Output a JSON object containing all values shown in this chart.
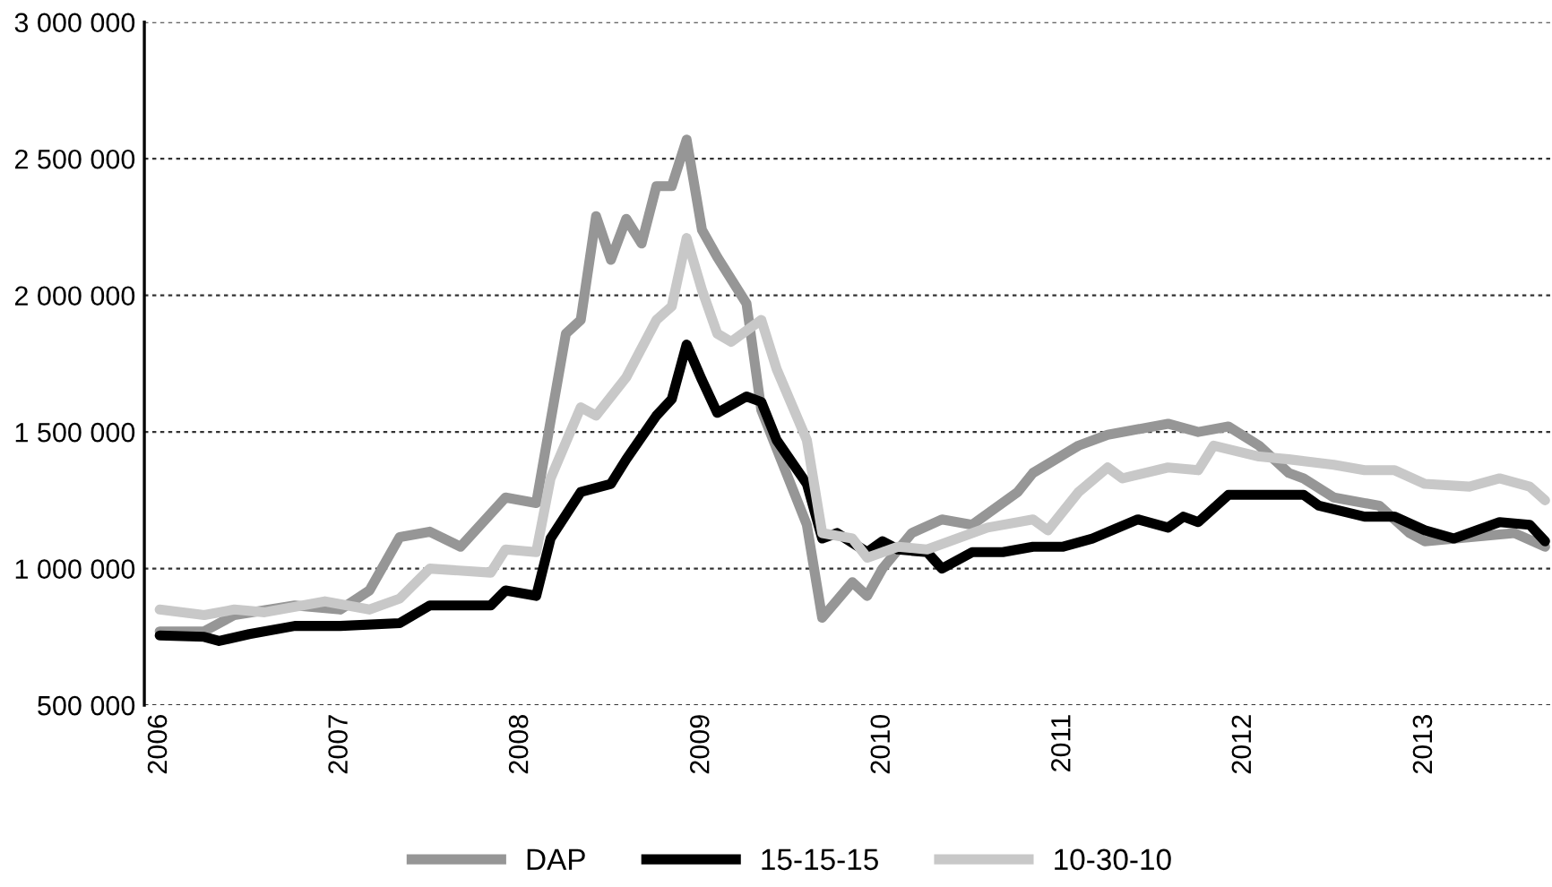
{
  "chart_data": {
    "type": "line",
    "legend": "bottom",
    "grid": "y",
    "line_style": "solid",
    "marker": "none",
    "xlim": [
      "2005-12",
      "2013-09-15"
    ],
    "xticks": [
      {
        "value": "2006-01",
        "label": "2006"
      },
      {
        "value": "2007-01",
        "label": "2007"
      },
      {
        "value": "2008-01",
        "label": "2008"
      },
      {
        "value": "2009-01",
        "label": "2009"
      },
      {
        "value": "2010-01",
        "label": "2010"
      },
      {
        "value": "2011-01",
        "label": "2011"
      },
      {
        "value": "2012-01",
        "label": "2012"
      },
      {
        "value": "2013-01",
        "label": "2013"
      }
    ],
    "ylim": [
      500000,
      3000000
    ],
    "yticks": [
      {
        "value": 500000,
        "label": "500 000"
      },
      {
        "value": 1000000,
        "label": "1 000 000"
      },
      {
        "value": 1500000,
        "label": "1 500 000"
      },
      {
        "value": 2000000,
        "label": "2 000 000"
      },
      {
        "value": 2500000,
        "label": "2 500 000"
      },
      {
        "value": 3000000,
        "label": "3 000 000"
      }
    ],
    "series": [
      {
        "name": "DAP",
        "color": "#969696",
        "x": [
          "2006-01",
          "2006-04",
          "2006-06",
          "2006-10",
          "2007-01",
          "2007-03",
          "2007-05",
          "2007-07",
          "2007-09",
          "2007-12",
          "2008-02",
          "2008-04",
          "2008-05",
          "2008-06",
          "2008-07",
          "2008-08",
          "2008-09",
          "2008-10",
          "2008-11",
          "2008-12",
          "2009-01",
          "2009-02",
          "2009-04",
          "2009-05",
          "2009-08",
          "2009-09",
          "2009-11",
          "2009-12",
          "2010-01",
          "2010-03",
          "2010-05",
          "2010-07",
          "2010-10",
          "2010-11",
          "2011-02",
          "2011-04",
          "2011-08",
          "2011-10",
          "2011-12",
          "2012-02",
          "2012-04",
          "2012-05",
          "2012-07",
          "2012-10",
          "2012-12",
          "2013-01",
          "2013-07",
          "2013-09"
        ],
        "values": [
          770000,
          770000,
          830000,
          865000,
          850000,
          920000,
          1115000,
          1135000,
          1080000,
          1260000,
          1240000,
          1860000,
          1910000,
          2290000,
          2130000,
          2280000,
          2190000,
          2400000,
          2400000,
          2570000,
          2240000,
          2140000,
          1970000,
          1580000,
          1160000,
          820000,
          950000,
          900000,
          1000000,
          1130000,
          1180000,
          1160000,
          1280000,
          1350000,
          1450000,
          1490000,
          1530000,
          1500000,
          1520000,
          1450000,
          1350000,
          1330000,
          1260000,
          1230000,
          1130000,
          1100000,
          1130000,
          1080000
        ]
      },
      {
        "name": "15-15-15",
        "color": "#000000",
        "x": [
          "2006-01",
          "2006-04",
          "2006-05",
          "2006-07",
          "2006-10",
          "2007-01",
          "2007-05",
          "2007-07",
          "2007-11",
          "2007-12",
          "2008-02",
          "2008-03",
          "2008-05",
          "2008-07",
          "2008-08",
          "2008-10",
          "2008-11",
          "2008-12",
          "2009-01",
          "2009-02",
          "2009-04",
          "2009-05",
          "2009-06",
          "2009-08",
          "2009-09",
          "2009-10",
          "2009-12",
          "2010-01",
          "2010-02",
          "2010-04",
          "2010-05",
          "2010-07",
          "2010-09",
          "2010-11",
          "2011-01",
          "2011-03",
          "2011-06",
          "2011-08",
          "2011-09",
          "2011-10",
          "2011-12",
          "2012-05",
          "2012-06",
          "2012-09",
          "2012-11",
          "2013-01",
          "2013-03",
          "2013-06",
          "2013-08",
          "2013-09"
        ],
        "values": [
          755000,
          750000,
          735000,
          760000,
          790000,
          790000,
          800000,
          865000,
          865000,
          920000,
          900000,
          1110000,
          1280000,
          1310000,
          1400000,
          1560000,
          1620000,
          1820000,
          1690000,
          1570000,
          1630000,
          1610000,
          1470000,
          1310000,
          1110000,
          1130000,
          1060000,
          1100000,
          1070000,
          1060000,
          1000000,
          1060000,
          1060000,
          1080000,
          1080000,
          1110000,
          1180000,
          1150000,
          1190000,
          1170000,
          1270000,
          1270000,
          1230000,
          1190000,
          1190000,
          1140000,
          1110000,
          1170000,
          1160000,
          1100000
        ]
      },
      {
        "name": "10-30-10",
        "color": "#c8c8c8",
        "x": [
          "2006-01",
          "2006-04",
          "2006-06",
          "2006-08",
          "2006-12",
          "2007-03",
          "2007-05",
          "2007-07",
          "2007-11",
          "2007-12",
          "2008-02",
          "2008-03",
          "2008-05",
          "2008-06",
          "2008-08",
          "2008-10",
          "2008-11",
          "2008-12",
          "2009-01",
          "2009-02",
          "2009-03",
          "2009-05",
          "2009-06",
          "2009-08",
          "2009-09",
          "2009-11",
          "2009-12",
          "2010-02",
          "2010-04",
          "2010-06",
          "2010-08",
          "2010-11",
          "2010-12",
          "2011-02",
          "2011-04",
          "2011-05",
          "2011-08",
          "2011-10",
          "2011-11",
          "2012-02",
          "2012-04",
          "2012-07",
          "2012-09",
          "2012-11",
          "2013-01",
          "2013-04",
          "2013-06",
          "2013-08",
          "2013-09"
        ],
        "values": [
          850000,
          830000,
          850000,
          840000,
          880000,
          850000,
          890000,
          1000000,
          985000,
          1070000,
          1060000,
          1330000,
          1590000,
          1560000,
          1700000,
          1910000,
          1960000,
          2210000,
          2020000,
          1860000,
          1830000,
          1910000,
          1730000,
          1470000,
          1130000,
          1110000,
          1040000,
          1080000,
          1070000,
          1110000,
          1150000,
          1180000,
          1140000,
          1280000,
          1370000,
          1330000,
          1370000,
          1360000,
          1450000,
          1410000,
          1400000,
          1380000,
          1360000,
          1360000,
          1310000,
          1300000,
          1330000,
          1300000,
          1250000
        ]
      }
    ]
  }
}
